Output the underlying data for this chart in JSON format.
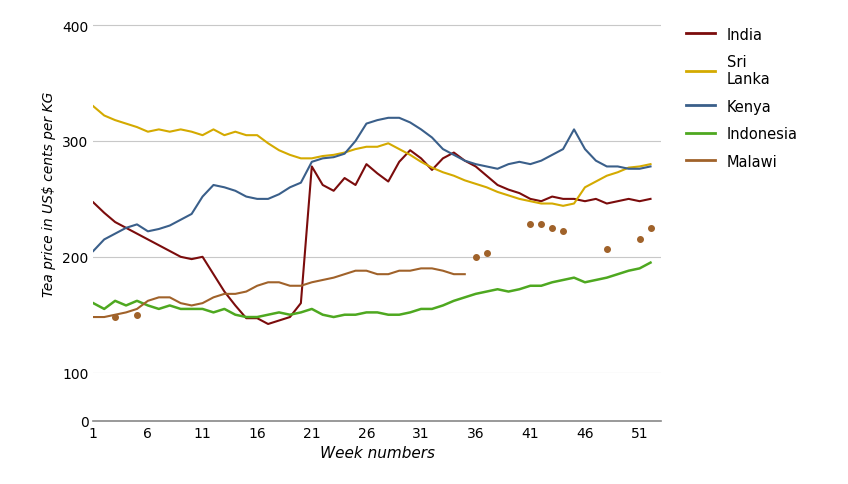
{
  "ylabel": "Tea price in US$ cents per KG",
  "xlabel": "Week numbers",
  "ylim_main": [
    100,
    410
  ],
  "ylim_zero": [
    0,
    20
  ],
  "yticks_main": [
    100,
    200,
    300,
    400
  ],
  "xticks": [
    1,
    6,
    11,
    16,
    21,
    26,
    31,
    36,
    41,
    46,
    51
  ],
  "xlim": [
    1,
    53
  ],
  "background_color": "#ffffff",
  "india": {
    "color": "#7b0c0c",
    "weeks": [
      1,
      2,
      3,
      4,
      5,
      6,
      7,
      8,
      9,
      10,
      11,
      12,
      13,
      14,
      15,
      16,
      17,
      18,
      19,
      20,
      21,
      22,
      23,
      24,
      25,
      26,
      27,
      28,
      29,
      30,
      31,
      32,
      33,
      34,
      35,
      36,
      37,
      38,
      39,
      40,
      41,
      42,
      43,
      44,
      45,
      46,
      47,
      48,
      49,
      50,
      51,
      52
    ],
    "values": [
      247,
      238,
      230,
      225,
      220,
      215,
      210,
      205,
      200,
      198,
      200,
      185,
      170,
      158,
      147,
      147,
      142,
      145,
      148,
      160,
      278,
      262,
      257,
      268,
      262,
      280,
      272,
      265,
      282,
      292,
      285,
      275,
      285,
      290,
      283,
      278,
      270,
      262,
      258,
      255,
      250,
      248,
      252,
      250,
      250,
      248,
      250,
      246,
      248,
      250,
      248,
      250
    ]
  },
  "sri_lanka": {
    "color": "#d4aa00",
    "weeks": [
      1,
      2,
      3,
      4,
      5,
      6,
      7,
      8,
      9,
      10,
      11,
      12,
      13,
      14,
      15,
      16,
      17,
      18,
      19,
      20,
      21,
      22,
      23,
      24,
      25,
      26,
      27,
      28,
      29,
      30,
      31,
      32,
      33,
      34,
      35,
      36,
      37,
      38,
      39,
      40,
      41,
      42,
      43,
      44,
      45,
      46,
      47,
      48,
      49,
      50,
      51,
      52
    ],
    "values": [
      330,
      322,
      318,
      315,
      312,
      308,
      310,
      308,
      310,
      308,
      305,
      310,
      305,
      308,
      305,
      305,
      298,
      292,
      288,
      285,
      285,
      287,
      288,
      290,
      293,
      295,
      295,
      298,
      293,
      288,
      282,
      277,
      273,
      270,
      266,
      263,
      260,
      256,
      253,
      250,
      248,
      246,
      246,
      244,
      246,
      260,
      265,
      270,
      273,
      277,
      278,
      280
    ]
  },
  "kenya": {
    "color": "#3a5f8a",
    "weeks": [
      1,
      2,
      3,
      4,
      5,
      6,
      7,
      8,
      9,
      10,
      11,
      12,
      13,
      14,
      15,
      16,
      17,
      18,
      19,
      20,
      21,
      22,
      23,
      24,
      25,
      26,
      27,
      28,
      29,
      30,
      31,
      32,
      33,
      34,
      35,
      36,
      37,
      38,
      39,
      40,
      41,
      42,
      43,
      44,
      45,
      46,
      47,
      48,
      49,
      50,
      51,
      52
    ],
    "values": [
      205,
      215,
      220,
      225,
      228,
      222,
      224,
      227,
      232,
      237,
      252,
      262,
      260,
      257,
      252,
      250,
      250,
      254,
      260,
      264,
      282,
      285,
      286,
      289,
      300,
      315,
      318,
      320,
      320,
      316,
      310,
      303,
      293,
      288,
      283,
      280,
      278,
      276,
      280,
      282,
      280,
      283,
      288,
      293,
      310,
      293,
      283,
      278,
      278,
      276,
      276,
      278
    ]
  },
  "indonesia": {
    "color": "#4ea820",
    "weeks": [
      1,
      2,
      3,
      4,
      5,
      6,
      7,
      8,
      9,
      10,
      11,
      12,
      13,
      14,
      15,
      16,
      17,
      18,
      19,
      20,
      21,
      22,
      23,
      24,
      25,
      26,
      27,
      28,
      29,
      30,
      31,
      32,
      33,
      34,
      35,
      36,
      37,
      38,
      39,
      40,
      41,
      42,
      43,
      44,
      45,
      46,
      47,
      48,
      49,
      50,
      51,
      52
    ],
    "values": [
      160,
      155,
      162,
      158,
      162,
      158,
      155,
      158,
      155,
      155,
      155,
      152,
      155,
      150,
      148,
      148,
      150,
      152,
      150,
      152,
      155,
      150,
      148,
      150,
      150,
      152,
      152,
      150,
      150,
      152,
      155,
      155,
      158,
      162,
      165,
      168,
      170,
      172,
      170,
      172,
      175,
      175,
      178,
      180,
      182,
      178,
      180,
      182,
      185,
      188,
      190,
      195
    ]
  },
  "malawi_line": {
    "color": "#a0622a",
    "weeks": [
      1,
      2,
      4,
      5,
      6,
      7,
      8,
      9,
      10,
      11,
      12,
      13,
      14,
      15,
      16,
      17,
      18,
      19,
      20,
      21,
      22,
      23,
      24,
      25,
      26,
      27,
      28,
      29,
      30,
      31,
      32,
      33,
      34,
      35
    ],
    "values": [
      148,
      148,
      152,
      155,
      162,
      165,
      165,
      160,
      158,
      160,
      165,
      168,
      168,
      170,
      175,
      178,
      178,
      175,
      175,
      178,
      180,
      182,
      185,
      188,
      188,
      185,
      185,
      188,
      188,
      190,
      190,
      188,
      185,
      185
    ]
  },
  "malawi_dots_early": {
    "color": "#a0622a",
    "weeks": [
      3,
      5
    ],
    "values": [
      148,
      150
    ]
  },
  "malawi_dots_late": {
    "color": "#a0622a",
    "weeks": [
      36,
      37,
      41,
      42,
      43,
      44,
      48,
      51,
      52
    ],
    "values": [
      200,
      203,
      228,
      228,
      225,
      222,
      207,
      215,
      225
    ]
  },
  "legend_entries": [
    "India",
    "Sri\nLanka",
    "Kenya",
    "Indonesia",
    "Malawi"
  ],
  "legend_colors": [
    "#7b0c0c",
    "#d4aa00",
    "#3a5f8a",
    "#4ea820",
    "#a0622a"
  ],
  "grid_color": "#c8c8c8",
  "spine_color": "#888888"
}
